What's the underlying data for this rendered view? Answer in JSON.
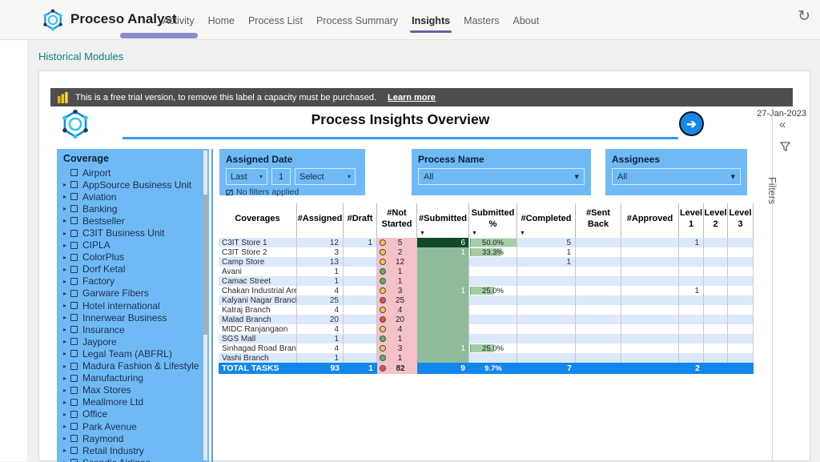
{
  "nav": {
    "brand": "Proceso Analyst",
    "tabs": [
      {
        "label": "Activity",
        "cls": ""
      },
      {
        "label": "Home",
        "cls": ""
      },
      {
        "label": "Process List",
        "cls": ""
      },
      {
        "label": "Process Summary",
        "cls": ""
      },
      {
        "label": "Insights",
        "cls": "active"
      },
      {
        "label": "Masters",
        "cls": ""
      },
      {
        "label": "About",
        "cls": ""
      }
    ],
    "active_tab": "Insights",
    "refresh_icon": "refresh-icon"
  },
  "page": {
    "breadcrumb": "Historical Modules"
  },
  "banner": {
    "text": "This is a free trial version, to remove this label a capacity must be purchased.",
    "link": "Learn more"
  },
  "report": {
    "title": "Process Insights Overview",
    "date": "27-Jan-2023",
    "filters_pane_label": "Filters",
    "collapse_glyph": "«"
  },
  "filters": {
    "assigned_date": {
      "label": "Assigned Date",
      "op": "Last",
      "value": "1",
      "select": "Select",
      "status": "No filters applied"
    },
    "process_name": {
      "label": "Process Name",
      "value": "All"
    },
    "assignees": {
      "label": "Assignees",
      "value": "All"
    }
  },
  "coverage": {
    "title": "Coverage",
    "items": [
      {
        "label": "Airport",
        "caret": "hide"
      },
      {
        "label": "AppSource Business Unit",
        "caret": ""
      },
      {
        "label": "Aviation",
        "caret": ""
      },
      {
        "label": "Banking",
        "caret": ""
      },
      {
        "label": "Bestseller",
        "caret": ""
      },
      {
        "label": "C3IT Business Unit",
        "caret": ""
      },
      {
        "label": "CIPLA",
        "caret": ""
      },
      {
        "label": "ColorPlus",
        "caret": ""
      },
      {
        "label": "Dorf Ketal",
        "caret": ""
      },
      {
        "label": "Factory",
        "caret": ""
      },
      {
        "label": "Garware Fibers",
        "caret": ""
      },
      {
        "label": "Hotel international",
        "caret": ""
      },
      {
        "label": "Innerwear Business",
        "caret": ""
      },
      {
        "label": "Insurance",
        "caret": ""
      },
      {
        "label": "Jaypore",
        "caret": ""
      },
      {
        "label": "Legal Team (ABFRL)",
        "caret": ""
      },
      {
        "label": "Madura Fashion & Lifestyle",
        "caret": ""
      },
      {
        "label": "Manufacturing",
        "caret": ""
      },
      {
        "label": "Max Stores",
        "caret": ""
      },
      {
        "label": "Meallmore Ltd",
        "caret": ""
      },
      {
        "label": "Office",
        "caret": ""
      },
      {
        "label": "Park Avenue",
        "caret": ""
      },
      {
        "label": "Raymond",
        "caret": ""
      },
      {
        "label": "Retail Industry",
        "caret": ""
      },
      {
        "label": "Scandic Airlines",
        "caret": ""
      }
    ]
  },
  "table": {
    "headers": [
      {
        "label": "Coverages",
        "cls": "h-blue",
        "sort": ""
      },
      {
        "label": "#Assigned",
        "cls": "h-blue",
        "sort": ""
      },
      {
        "label": "#Draft",
        "cls": "h-blue",
        "sort": ""
      },
      {
        "label": "#Not Started",
        "cls": "h-pink",
        "sort": ""
      },
      {
        "label": "#Submitted",
        "cls": "h-gdark",
        "sort": "▼"
      },
      {
        "label": "Submitted %",
        "cls": "h-green",
        "sort": "▼"
      },
      {
        "label": "#Completed",
        "cls": "h-blue",
        "sort": "▼"
      },
      {
        "label": "#Sent Back",
        "cls": "h-blue",
        "sort": ""
      },
      {
        "label": "#Approved",
        "cls": "h-blue",
        "sort": ""
      },
      {
        "label": "Level 1",
        "cls": "h-blue",
        "sort": ""
      },
      {
        "label": "Level 2",
        "cls": "h-blue",
        "sort": ""
      },
      {
        "label": "Level 3",
        "cls": "h-blue",
        "sort": ""
      }
    ],
    "rows": [
      {
        "c": "C3IT Store 1",
        "a": "12",
        "d": "1",
        "st": "st-yellow",
        "ns": "5",
        "sub": "6",
        "subcls": "sub-dark",
        "pct": "50.0%",
        "bar": "100%",
        "comp": "5",
        "sb": "",
        "ap": "",
        "l1": "1",
        "l2": "",
        "l3": ""
      },
      {
        "c": "C3IT Store 2",
        "a": "3",
        "d": "",
        "st": "st-yellow",
        "ns": "2",
        "sub": "1",
        "subcls": "",
        "pct": "33.3%",
        "bar": "66%",
        "comp": "1",
        "sb": "",
        "ap": "",
        "l1": "",
        "l2": "",
        "l3": ""
      },
      {
        "c": "Camp Store",
        "a": "13",
        "d": "",
        "st": "st-yellow",
        "ns": "12",
        "sub": "",
        "subcls": "",
        "pct": "",
        "bar": "",
        "comp": "1",
        "sb": "",
        "ap": "",
        "l1": "",
        "l2": "",
        "l3": ""
      },
      {
        "c": "Avani",
        "a": "1",
        "d": "",
        "st": "st-green",
        "ns": "1",
        "sub": "",
        "subcls": "",
        "pct": "",
        "bar": "",
        "comp": "",
        "sb": "",
        "ap": "",
        "l1": "",
        "l2": "",
        "l3": ""
      },
      {
        "c": "Camac Street",
        "a": "1",
        "d": "",
        "st": "st-green",
        "ns": "1",
        "sub": "",
        "subcls": "",
        "pct": "",
        "bar": "",
        "comp": "",
        "sb": "",
        "ap": "",
        "l1": "",
        "l2": "",
        "l3": ""
      },
      {
        "c": "Chakan Industrial Area",
        "a": "4",
        "d": "",
        "st": "st-yellow",
        "ns": "3",
        "sub": "1",
        "subcls": "",
        "pct": "25.0%",
        "bar": "50%",
        "comp": "",
        "sb": "",
        "ap": "",
        "l1": "1",
        "l2": "",
        "l3": ""
      },
      {
        "c": "Kalyani Nagar Branch",
        "a": "25",
        "d": "",
        "st": "st-red",
        "ns": "25",
        "sub": "",
        "subcls": "",
        "pct": "",
        "bar": "",
        "comp": "",
        "sb": "",
        "ap": "",
        "l1": "",
        "l2": "",
        "l3": ""
      },
      {
        "c": "Katraj Branch",
        "a": "4",
        "d": "",
        "st": "st-yellow",
        "ns": "4",
        "sub": "",
        "subcls": "",
        "pct": "",
        "bar": "",
        "comp": "",
        "sb": "",
        "ap": "",
        "l1": "",
        "l2": "",
        "l3": ""
      },
      {
        "c": "Malad Branch",
        "a": "20",
        "d": "",
        "st": "st-red",
        "ns": "20",
        "sub": "",
        "subcls": "",
        "pct": "",
        "bar": "",
        "comp": "",
        "sb": "",
        "ap": "",
        "l1": "",
        "l2": "",
        "l3": ""
      },
      {
        "c": "MIDC Ranjangaon",
        "a": "4",
        "d": "",
        "st": "st-yellow",
        "ns": "4",
        "sub": "",
        "subcls": "",
        "pct": "",
        "bar": "",
        "comp": "",
        "sb": "",
        "ap": "",
        "l1": "",
        "l2": "",
        "l3": ""
      },
      {
        "c": "SGS Mall",
        "a": "1",
        "d": "",
        "st": "st-green",
        "ns": "1",
        "sub": "",
        "subcls": "",
        "pct": "",
        "bar": "",
        "comp": "",
        "sb": "",
        "ap": "",
        "l1": "",
        "l2": "",
        "l3": ""
      },
      {
        "c": "Sinhagad Road Branch",
        "a": "4",
        "d": "",
        "st": "st-yellow",
        "ns": "3",
        "sub": "1",
        "subcls": "",
        "pct": "25.0%",
        "bar": "50%",
        "comp": "",
        "sb": "",
        "ap": "",
        "l1": "",
        "l2": "",
        "l3": ""
      },
      {
        "c": "Vashi Branch",
        "a": "1",
        "d": "",
        "st": "st-green",
        "ns": "1",
        "sub": "",
        "subcls": "",
        "pct": "",
        "bar": "",
        "comp": "",
        "sb": "",
        "ap": "",
        "l1": "",
        "l2": "",
        "l3": ""
      }
    ],
    "total": {
      "label": "TOTAL TASKS",
      "assigned": "93",
      "draft": "1",
      "not_started": "82",
      "submitted": "9",
      "pct": "9.7%",
      "completed": "7",
      "sent_back": "",
      "approved": "",
      "l1": "2",
      "l2": "",
      "l3": ""
    }
  }
}
